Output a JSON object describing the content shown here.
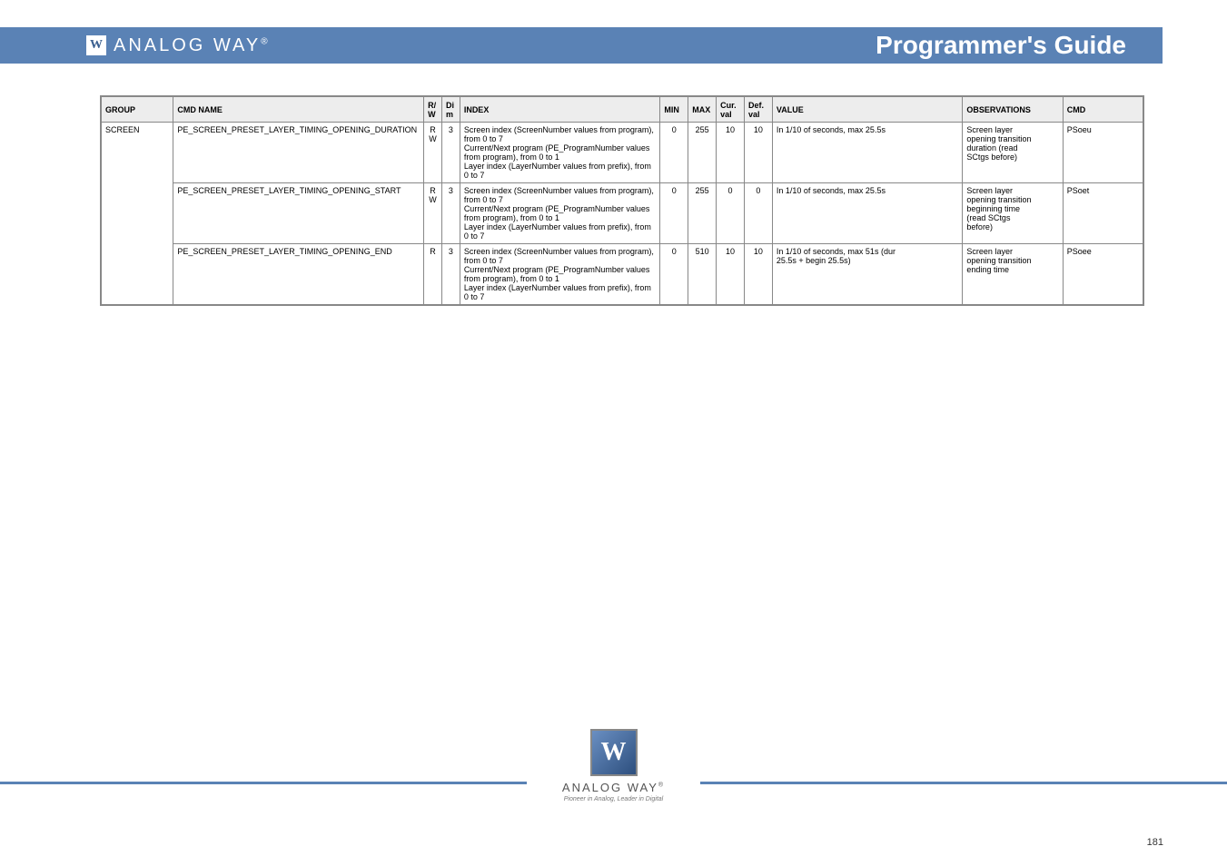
{
  "header": {
    "brand": "ANALOG WAY",
    "reg": "®",
    "title": "Programmer's Guide",
    "logo_color": "#5a82b5"
  },
  "footer": {
    "brand": "ANALOG WAY",
    "reg": "®",
    "tag": "Pioneer in Analog, Leader in Digital",
    "page": "181"
  },
  "table": {
    "headers": {
      "group": "GROUP",
      "cmd_name": "CMD NAME",
      "rw": "R/W",
      "dim": "Dim",
      "index": "INDEX",
      "min": "MIN",
      "max": "MAX",
      "cur": "Cur. val",
      "def": "Def. val",
      "val": "VALUE",
      "obs": "OBSERVATIONS",
      "cmd": "CMD"
    },
    "group_label": "SCREEN",
    "rows": [
      {
        "cmd_name": "PE_SCREEN_PRESET_LAYER_TIMING_OPENING_DURATION",
        "rw": "RW",
        "dim": "3",
        "index": "Screen index (ScreenNumber values from program), from 0 to 7\nCurrent/Next program (PE_ProgramNumber values from program), from 0 to 1\nLayer index (LayerNumber values from prefix), from 0 to 7",
        "min": "0",
        "max": "255",
        "cur": "10",
        "def": "10",
        "val": "In 1/10 of seconds, max 25.5s",
        "obs": "Screen layer\nopening transition\nduration (read\nSCtgs before)",
        "cmd": "PSoeu"
      },
      {
        "cmd_name": "PE_SCREEN_PRESET_LAYER_TIMING_OPENING_START",
        "rw": "RW",
        "dim": "3",
        "index": "Screen index (ScreenNumber values from program), from 0 to 7\nCurrent/Next program (PE_ProgramNumber values from program), from 0 to 1\nLayer index (LayerNumber values from prefix), from 0 to 7",
        "min": "0",
        "max": "255",
        "cur": "0",
        "def": "0",
        "val": "In 1/10 of seconds, max 25.5s",
        "obs": "Screen layer\nopening transition\nbeginning time\n(read SCtgs\nbefore)",
        "cmd": "PSoet"
      },
      {
        "cmd_name": "PE_SCREEN_PRESET_LAYER_TIMING_OPENING_END",
        "rw": "R",
        "dim": "3",
        "index": "Screen index (ScreenNumber values from program), from 0 to 7\nCurrent/Next program (PE_ProgramNumber values from program), from 0 to 1\nLayer index (LayerNumber values from prefix), from 0 to 7",
        "min": "0",
        "max": "510",
        "cur": "10",
        "def": "10",
        "val": "In 1/10 of seconds, max 51s (dur\n25.5s + begin 25.5s)",
        "obs": "Screen layer\nopening transition\nending time",
        "cmd": "PSoee"
      }
    ]
  }
}
